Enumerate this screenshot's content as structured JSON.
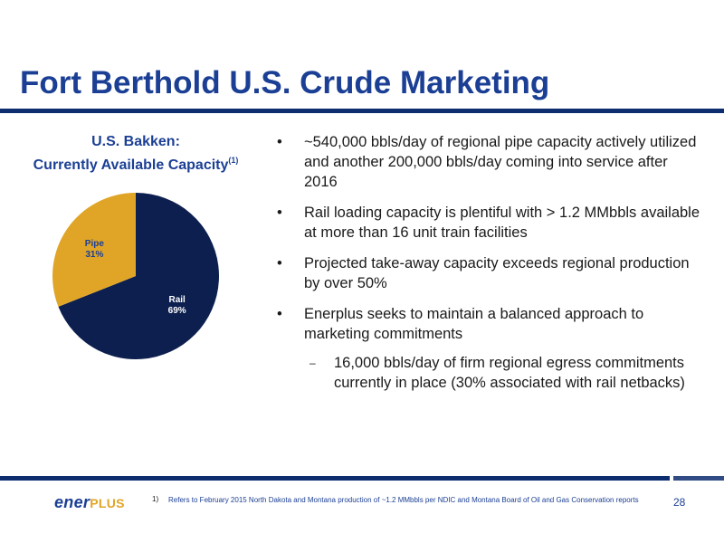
{
  "header": {
    "title": "Fort Berthold U.S. Crude Marketing"
  },
  "colors": {
    "brand_blue": "#1b3f94",
    "rule_blue": "#0d2d6e",
    "pie_rail": "#0c1f4e",
    "pie_pipe": "#e0a526"
  },
  "chart_data": {
    "type": "pie",
    "title_line1": "U.S. Bakken:",
    "title_line2": "Currently Available Capacity",
    "title_footnote": "(1)",
    "slices": [
      {
        "label": "Rail",
        "value": 69,
        "value_label": "69%",
        "color": "#0c1f4e",
        "text_color": "#ffffff"
      },
      {
        "label": "Pipe",
        "value": 31,
        "value_label": "31%",
        "color": "#e0a526",
        "text_color": "#1b3f94"
      }
    ]
  },
  "bullets": {
    "marker": "•",
    "sub_marker": "–",
    "items": [
      "~540,000 bbls/day of regional pipe capacity actively utilized and another 200,000 bbls/day coming into service after 2016",
      "Rail loading capacity is plentiful with > 1.2 MMbbls available at more than 16 unit train facilities",
      "Projected take-away capacity exceeds regional production by over 50%",
      "Enerplus seeks to maintain a balanced approach to marketing commitments"
    ],
    "sub_items": [
      "16,000 bbls/day of firm regional egress commitments currently in place (30% associated with rail netbacks)"
    ]
  },
  "footer": {
    "logo_part1": "ener",
    "logo_part2": "PLUS",
    "footnote_number": "1)",
    "footnote_text": "Refers to February 2015 North Dakota and Montana production of ~1.2 MMbbls per NDIC and Montana Board of Oil and Gas Conservation reports",
    "page_number": "28"
  }
}
